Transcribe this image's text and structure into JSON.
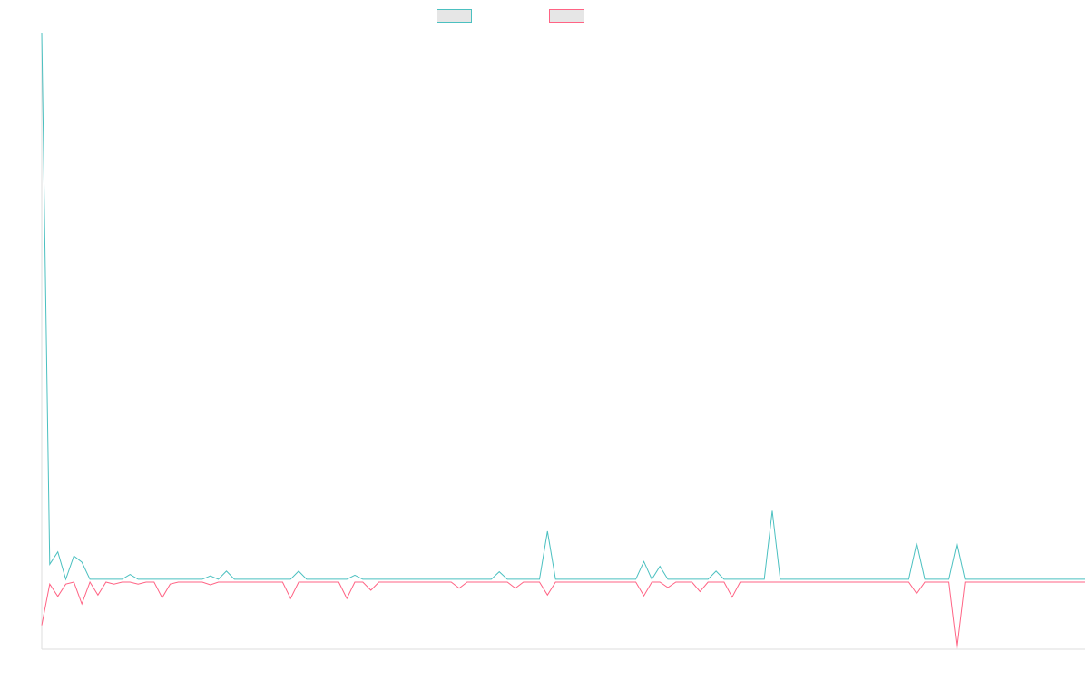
{
  "chart_data": {
    "type": "line",
    "title": "",
    "xlabel": "",
    "ylabel": "",
    "grid": false,
    "legend": "top-center",
    "x": [
      0,
      1,
      2,
      3,
      4,
      5,
      6,
      7,
      8,
      9,
      10,
      11,
      12,
      13,
      14,
      15,
      16,
      17,
      18,
      19,
      20,
      21,
      22,
      23,
      24,
      25,
      26,
      27,
      28,
      29,
      30,
      31,
      32,
      33,
      34,
      35,
      36,
      37,
      38,
      39,
      40,
      41,
      42,
      43,
      44,
      45,
      46,
      47,
      48,
      49,
      50,
      51,
      52,
      53,
      54,
      55,
      56,
      57,
      58,
      59,
      60,
      61,
      62,
      63,
      64,
      65,
      66,
      67,
      68,
      69,
      70,
      71,
      72,
      73,
      74,
      75,
      76,
      77,
      78,
      79,
      80,
      81,
      82,
      83,
      84,
      85,
      86,
      87,
      88,
      89,
      90,
      91,
      92,
      93,
      94,
      95,
      96,
      97,
      98,
      99,
      100,
      101,
      102,
      103,
      104,
      105,
      106,
      107,
      108,
      109,
      110,
      111,
      112,
      113,
      114,
      115,
      116,
      117,
      118,
      119,
      120,
      121,
      122,
      123,
      124,
      125,
      126,
      127,
      128,
      129,
      130
    ],
    "ylim": [
      -10,
      80
    ],
    "series": [
      {
        "name": "",
        "color": "#4bc0c0",
        "values": [
          80,
          2.4,
          4.2,
          0.2,
          3.6,
          2.7,
          0.2,
          0.2,
          0.2,
          0.2,
          0.2,
          0.9,
          0.2,
          0.2,
          0.2,
          0.2,
          0.2,
          0.2,
          0.2,
          0.2,
          0.2,
          0.7,
          0.2,
          1.4,
          0.2,
          0.2,
          0.2,
          0.2,
          0.2,
          0.2,
          0.2,
          0.2,
          1.4,
          0.2,
          0.2,
          0.2,
          0.2,
          0.2,
          0.2,
          0.8,
          0.2,
          0.2,
          0.2,
          0.2,
          0.2,
          0.2,
          0.2,
          0.2,
          0.2,
          0.2,
          0.2,
          0.2,
          0.2,
          0.2,
          0.2,
          0.2,
          0.2,
          1.3,
          0.2,
          0.2,
          0.2,
          0.2,
          0.2,
          7.2,
          0.2,
          0.2,
          0.2,
          0.2,
          0.2,
          0.2,
          0.2,
          0.2,
          0.2,
          0.2,
          0.2,
          2.8,
          0.2,
          2.1,
          0.2,
          0.2,
          0.2,
          0.2,
          0.2,
          0.2,
          1.4,
          0.2,
          0.2,
          0.2,
          0.2,
          0.2,
          0.2,
          10.2,
          0.2,
          0.2,
          0.2,
          0.2,
          0.2,
          0.2,
          0.2,
          0.2,
          0.2,
          0.2,
          0.2,
          0.2,
          0.2,
          0.2,
          0.2,
          0.2,
          0.2,
          5.5,
          0.2,
          0.2,
          0.2,
          0.2,
          5.5,
          0.2,
          0.2,
          0.2,
          0.2,
          0.2,
          0.2,
          0.2,
          0.2,
          0.2,
          0.2,
          0.2,
          0.2,
          0.2,
          0.2,
          0.2,
          0.2
        ]
      },
      {
        "name": "",
        "color": "#ff6384",
        "values": [
          -6.5,
          -0.5,
          -2.3,
          -0.5,
          -0.2,
          -3.4,
          -0.2,
          -2.1,
          -0.2,
          -0.5,
          -0.2,
          -0.2,
          -0.5,
          -0.2,
          -0.2,
          -2.5,
          -0.5,
          -0.2,
          -0.2,
          -0.2,
          -0.2,
          -0.6,
          -0.2,
          -0.2,
          -0.2,
          -0.2,
          -0.2,
          -0.2,
          -0.2,
          -0.2,
          -0.2,
          -2.6,
          -0.2,
          -0.2,
          -0.2,
          -0.2,
          -0.2,
          -0.2,
          -2.6,
          -0.2,
          -0.2,
          -1.4,
          -0.2,
          -0.2,
          -0.2,
          -0.2,
          -0.2,
          -0.2,
          -0.2,
          -0.2,
          -0.2,
          -0.2,
          -1.1,
          -0.2,
          -0.2,
          -0.2,
          -0.2,
          -0.2,
          -0.2,
          -1.1,
          -0.2,
          -0.2,
          -0.2,
          -2.1,
          -0.2,
          -0.2,
          -0.2,
          -0.2,
          -0.2,
          -0.2,
          -0.2,
          -0.2,
          -0.2,
          -0.2,
          -0.2,
          -2.2,
          -0.2,
          -0.2,
          -1.0,
          -0.2,
          -0.2,
          -0.2,
          -1.6,
          -0.2,
          -0.2,
          -0.2,
          -2.4,
          -0.2,
          -0.2,
          -0.2,
          -0.2,
          -0.2,
          -0.2,
          -0.2,
          -0.2,
          -0.2,
          -0.2,
          -0.2,
          -0.2,
          -0.2,
          -0.2,
          -0.2,
          -0.2,
          -0.2,
          -0.2,
          -0.2,
          -0.2,
          -0.2,
          -0.2,
          -1.9,
          -0.2,
          -0.2,
          -0.2,
          -0.2,
          -10.0,
          -0.2,
          -0.2,
          -0.2,
          -0.2,
          -0.2,
          -0.2,
          -0.2,
          -0.2,
          -0.2,
          -0.2,
          -0.2,
          -0.2,
          -0.2,
          -0.2,
          -0.2,
          -0.2
        ]
      }
    ]
  }
}
